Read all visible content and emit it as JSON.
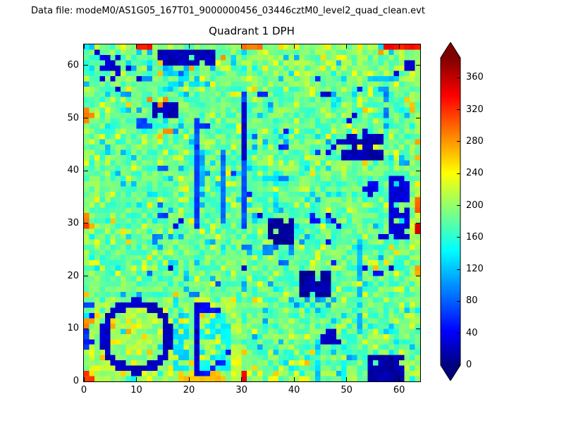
{
  "header": {
    "data_file_label": "Data file: modeM0/AS1G05_167T01_9000000456_03446cztM0_level2_quad_clean.evt"
  },
  "chart_data": {
    "type": "heatmap",
    "title": "Quadrant 1 DPH",
    "xlabel": "",
    "ylabel": "",
    "grid_size": 64,
    "x_range": [
      0,
      64
    ],
    "y_range": [
      0,
      64
    ],
    "x_ticks": [
      0,
      10,
      20,
      30,
      40,
      50,
      60
    ],
    "y_ticks": [
      0,
      10,
      20,
      30,
      40,
      50,
      60
    ],
    "grid": false,
    "colormap": "jet",
    "vmin": 0,
    "vmax": 385,
    "colorbar": {
      "ticks": [
        0,
        40,
        80,
        120,
        160,
        200,
        240,
        280,
        320,
        360
      ],
      "max_value": 385,
      "extend": "both",
      "position": "right",
      "low_color": "#00007f",
      "high_color": "#7f0000"
    },
    "heatmap_spec": {
      "seed": 1337,
      "base": {
        "low": 155,
        "span": 50,
        "p_yellow": 0.1,
        "yellow_lo": 205,
        "yellow_span": 32,
        "p_blue": 0.05,
        "blue_lo": 105,
        "blue_span": 40,
        "p_hot": 0.015,
        "hot_lo": 235,
        "hot_span": 30
      },
      "tints": [
        {
          "x": 0,
          "y": 0,
          "w": 30,
          "h": 16,
          "add": 22
        },
        {
          "x": 0,
          "y": 16,
          "w": 3,
          "h": 40,
          "add": 10
        },
        {
          "x": 62,
          "y": 0,
          "w": 2,
          "h": 64,
          "add": 10
        },
        {
          "x": 0,
          "y": 62,
          "w": 64,
          "h": 2,
          "add": 8
        },
        {
          "x": 30,
          "y": 56,
          "w": 34,
          "h": 8,
          "add": 10
        },
        {
          "x": 0,
          "y": 0,
          "w": 64,
          "h": 2,
          "add": 10
        }
      ],
      "features": [
        {
          "type": "scatter",
          "n": 45,
          "x": 2,
          "y": 16,
          "w": 58,
          "h": 44,
          "v1": 25,
          "v2": 115
        },
        {
          "type": "scatter",
          "n": 14,
          "x": 2,
          "y": 1,
          "w": 26,
          "h": 14,
          "v1": 238,
          "v2": 272
        },
        {
          "type": "rect",
          "x": 15,
          "y": 56,
          "w": 10,
          "h": 4,
          "v": 125,
          "d": 0.45
        },
        {
          "type": "rect",
          "x": 14,
          "y": 60,
          "w": 11,
          "h": 3,
          "v": 22,
          "d": 0.9
        },
        {
          "type": "rect",
          "x": 3,
          "y": 57,
          "w": 4,
          "h": 5,
          "v": 32,
          "d": 0.6
        },
        {
          "type": "cells",
          "v": 28,
          "pts": [
            [
              8,
              59
            ],
            [
              2,
              62
            ],
            [
              6,
              55
            ],
            [
              10,
              57
            ]
          ]
        },
        {
          "type": "rect",
          "x": 13,
          "y": 50,
          "w": 5,
          "h": 3,
          "v": 20,
          "d": 0.95
        },
        {
          "type": "rect",
          "x": 10,
          "y": 48,
          "w": 3,
          "h": 2,
          "v": 80,
          "d": 0.5
        },
        {
          "type": "vline",
          "x": 21,
          "y1": 29,
          "y2": 49,
          "v": 75
        },
        {
          "type": "vline",
          "x": 22,
          "y1": 33,
          "y2": 44,
          "v": 115,
          "d": 0.7
        },
        {
          "type": "vline",
          "x": 26,
          "y1": 30,
          "y2": 43,
          "v": 90
        },
        {
          "type": "vline",
          "x": 30,
          "y1": 29,
          "y2": 54,
          "v": 80
        },
        {
          "type": "vline",
          "x": 30,
          "y1": 42,
          "y2": 52,
          "v": 25
        },
        {
          "type": "vline",
          "x": 36,
          "y1": 31,
          "y2": 40,
          "v": 135,
          "d": 0.6
        },
        {
          "type": "rect",
          "x": 35,
          "y": 26,
          "w": 5,
          "h": 5,
          "v": 15,
          "d": 0.9
        },
        {
          "type": "rect",
          "x": 34,
          "y": 24,
          "w": 8,
          "h": 2,
          "v": 95,
          "d": 0.4
        },
        {
          "type": "rect",
          "x": 41,
          "y": 16,
          "w": 6,
          "h": 5,
          "v": 15,
          "d": 0.9
        },
        {
          "type": "rect",
          "x": 40,
          "y": 14,
          "w": 8,
          "h": 2,
          "v": 105,
          "d": 0.35
        },
        {
          "type": "rect",
          "x": 49,
          "y": 42,
          "w": 8,
          "h": 5,
          "v": 18,
          "d": 0.85
        },
        {
          "type": "cells",
          "v": 35,
          "pts": [
            [
              47,
              44
            ],
            [
              48,
              45
            ],
            [
              46,
              43
            ],
            [
              50,
              49
            ],
            [
              51,
              50
            ]
          ]
        },
        {
          "type": "vline",
          "x": 57,
          "y1": 47,
          "y2": 55,
          "v": 100,
          "d": 0.8
        },
        {
          "type": "rect",
          "x": 58,
          "y": 27,
          "w": 4,
          "h": 12,
          "v": 35,
          "d": 0.7
        },
        {
          "type": "rect",
          "x": 53,
          "y": 35,
          "w": 3,
          "h": 3,
          "v": 45,
          "d": 0.6
        },
        {
          "type": "vline",
          "x": 52,
          "y1": 9,
          "y2": 26,
          "v": 120,
          "d": 0.8
        },
        {
          "type": "rect",
          "x": 54,
          "y": 0,
          "w": 7,
          "h": 5,
          "v": 15,
          "d": 0.9
        },
        {
          "type": "rect",
          "x": 45,
          "y": 7,
          "w": 4,
          "h": 3,
          "v": 25,
          "d": 0.9
        },
        {
          "type": "circle",
          "cx": 9.5,
          "cy": 8,
          "r": 6.3,
          "th": 1.4,
          "a1": 0,
          "a2": 360,
          "v": 25
        },
        {
          "type": "vline",
          "x": 21,
          "y1": 1,
          "y2": 14,
          "v": 30
        },
        {
          "type": "circle",
          "cx": 21,
          "cy": 7.5,
          "r": 6.2,
          "th": 1.2,
          "a1": -85,
          "a2": 85,
          "v": 55
        },
        {
          "type": "rect",
          "x": 17,
          "y": 2,
          "w": 3,
          "h": 11,
          "v": 135,
          "d": 0.6
        },
        {
          "type": "rect",
          "x": 22,
          "y": 2,
          "w": 6,
          "h": 11,
          "v": 145,
          "d": 0.5
        },
        {
          "type": "rect",
          "x": 0,
          "y": 5,
          "w": 2,
          "h": 10,
          "v": 65,
          "d": 0.55
        },
        {
          "type": "cells",
          "v": 32,
          "pts": [
            [
              61,
              59
            ],
            [
              61,
              60
            ],
            [
              62,
              59
            ],
            [
              59,
              58
            ],
            [
              62,
              60
            ]
          ]
        },
        {
          "type": "cells",
          "v": 40,
          "pts": [
            [
              47,
              30
            ],
            [
              48,
              29
            ],
            [
              46,
              31
            ],
            [
              18,
              30
            ],
            [
              17,
              29
            ]
          ]
        },
        {
          "type": "hline",
          "y": 57,
          "x1": 54,
          "x2": 60,
          "v": 125,
          "d": 0.6
        },
        {
          "type": "vline",
          "x": 44,
          "y1": 0,
          "y2": 9,
          "v": 130,
          "d": 0.6
        },
        {
          "type": "vline",
          "x": 49,
          "y1": 0,
          "y2": 14,
          "v": 140,
          "d": 0.6
        },
        {
          "type": "cells",
          "v": 290,
          "pts": [
            [
              0,
              50
            ],
            [
              0,
              51
            ],
            [
              1,
              50
            ],
            [
              0,
              30
            ],
            [
              0,
              31
            ]
          ]
        },
        {
          "type": "cells",
          "v": 315,
          "pts": [
            [
              0,
              29
            ],
            [
              0,
              0
            ],
            [
              1,
              0
            ],
            [
              0,
              1
            ]
          ]
        },
        {
          "type": "cells",
          "v": 285,
          "pts": [
            [
              0,
              10
            ],
            [
              0,
              11
            ],
            [
              0,
              49
            ]
          ]
        },
        {
          "type": "cells",
          "v": 330,
          "pts": [
            [
              10,
              63
            ],
            [
              11,
              63
            ],
            [
              12,
              63
            ]
          ]
        },
        {
          "type": "cells",
          "v": 290,
          "pts": [
            [
              30,
              63
            ],
            [
              31,
              63
            ],
            [
              32,
              63
            ],
            [
              33,
              63
            ]
          ]
        },
        {
          "type": "rect",
          "x": 57,
          "y": 63,
          "w": 7,
          "h": 1,
          "v": 335,
          "d": 1
        },
        {
          "type": "cells",
          "v": 280,
          "pts": [
            [
              56,
              62
            ],
            [
              26,
              61
            ],
            [
              20,
              59
            ]
          ]
        },
        {
          "type": "cells",
          "v": 300,
          "pts": [
            [
              63,
              32
            ],
            [
              63,
              33
            ],
            [
              63,
              34
            ]
          ]
        },
        {
          "type": "cells",
          "v": 350,
          "pts": [
            [
              63,
              28
            ],
            [
              63,
              29
            ]
          ]
        },
        {
          "type": "cells",
          "v": 275,
          "pts": [
            [
              63,
              20
            ],
            [
              63,
              21
            ],
            [
              63,
              45
            ]
          ]
        },
        {
          "type": "rect",
          "x": 18,
          "y": 0,
          "w": 9,
          "h": 1,
          "v": 265,
          "d": 0.85
        },
        {
          "type": "cells",
          "v": 340,
          "pts": [
            [
              30,
              0
            ],
            [
              30,
              1
            ]
          ]
        },
        {
          "type": "cells",
          "v": 250,
          "pts": [
            [
              32,
              2
            ],
            [
              33,
              1
            ]
          ]
        },
        {
          "type": "cells",
          "v": 285,
          "pts": [
            [
              15,
              53
            ],
            [
              12,
              53
            ],
            [
              16,
              47
            ],
            [
              15,
              47
            ],
            [
              14,
              52
            ]
          ]
        }
      ]
    }
  }
}
